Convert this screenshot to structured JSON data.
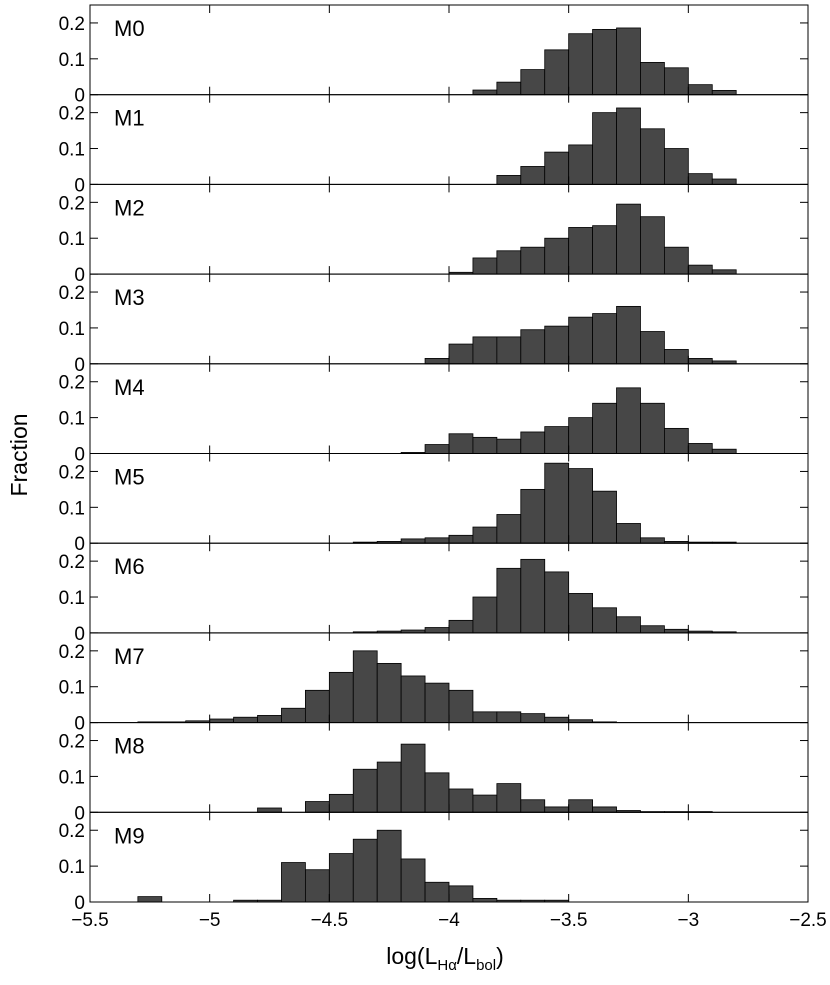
{
  "chart_data": {
    "type": "bar",
    "ylabel": "Fraction",
    "xlabel": {
      "prefix": "log(L",
      "sub1": "Hα",
      "mid": "/L",
      "sub2": "bol",
      "suffix": ")"
    },
    "xlim": [
      -5.5,
      -2.5
    ],
    "xticks": [
      -5.5,
      -5,
      -4.5,
      -4,
      -3.5,
      -3,
      -2.5
    ],
    "xtick_labels": [
      "−5.5",
      "−5",
      "−4.5",
      "−4",
      "−3.5",
      "−3",
      "−2.5"
    ],
    "ylim": [
      0,
      0.25
    ],
    "yticks": [
      0,
      0.1,
      0.2
    ],
    "ytick_labels": [
      "0",
      "0.1",
      "0.2"
    ],
    "bar_color": "#474747",
    "bin_width": 0.1,
    "bin_start": -5.3,
    "bin_count": 25,
    "panels": [
      {
        "name": "M0",
        "values": [
          0,
          0,
          0,
          0,
          0,
          0,
          0,
          0,
          0,
          0,
          0,
          0,
          0,
          0,
          0.013,
          0.035,
          0.07,
          0.125,
          0.17,
          0.182,
          0.186,
          0.09,
          0.075,
          0.028,
          0.012
        ]
      },
      {
        "name": "M1",
        "values": [
          0,
          0,
          0,
          0,
          0,
          0,
          0,
          0,
          0,
          0,
          0,
          0,
          0,
          0,
          0,
          0.025,
          0.05,
          0.09,
          0.11,
          0.2,
          0.213,
          0.155,
          0.1,
          0.03,
          0.015
        ]
      },
      {
        "name": "M2",
        "values": [
          0,
          0,
          0,
          0,
          0,
          0,
          0,
          0,
          0,
          0,
          0,
          0,
          0,
          0.005,
          0.045,
          0.065,
          0.075,
          0.1,
          0.13,
          0.135,
          0.195,
          0.16,
          0.075,
          0.025,
          0.012
        ]
      },
      {
        "name": "M3",
        "values": [
          0,
          0,
          0,
          0,
          0,
          0,
          0,
          0,
          0,
          0,
          0,
          0,
          0.015,
          0.055,
          0.075,
          0.075,
          0.095,
          0.105,
          0.13,
          0.14,
          0.16,
          0.09,
          0.04,
          0.015,
          0.008
        ]
      },
      {
        "name": "M4",
        "values": [
          0,
          0,
          0,
          0,
          0,
          0,
          0,
          0,
          0,
          0,
          0,
          0.003,
          0.025,
          0.055,
          0.045,
          0.04,
          0.06,
          0.075,
          0.1,
          0.14,
          0.183,
          0.14,
          0.07,
          0.028,
          0.012
        ]
      },
      {
        "name": "M5",
        "values": [
          0,
          0,
          0,
          0,
          0,
          0,
          0,
          0,
          0,
          0.003,
          0.005,
          0.012,
          0.015,
          0.022,
          0.045,
          0.08,
          0.15,
          0.223,
          0.208,
          0.145,
          0.055,
          0.015,
          0.005,
          0.003,
          0.003
        ]
      },
      {
        "name": "M6",
        "values": [
          0,
          0,
          0,
          0,
          0,
          0,
          0,
          0,
          0,
          0.003,
          0.005,
          0.008,
          0.015,
          0.035,
          0.1,
          0.18,
          0.205,
          0.17,
          0.11,
          0.07,
          0.045,
          0.02,
          0.01,
          0.005,
          0.003
        ]
      },
      {
        "name": "M7",
        "values": [
          0.002,
          0.002,
          0.005,
          0.01,
          0.015,
          0.02,
          0.04,
          0.09,
          0.14,
          0.2,
          0.165,
          0.13,
          0.11,
          0.09,
          0.03,
          0.03,
          0.025,
          0.015,
          0.008,
          0.002,
          0,
          0,
          0,
          0,
          0
        ]
      },
      {
        "name": "M8",
        "values": [
          0,
          0,
          0,
          0,
          0,
          0.012,
          0,
          0.03,
          0.05,
          0.12,
          0.14,
          0.19,
          0.11,
          0.065,
          0.048,
          0.08,
          0.035,
          0.015,
          0.035,
          0.015,
          0.005,
          0.002,
          0.002,
          0.002,
          0
        ]
      },
      {
        "name": "M9",
        "values": [
          0.015,
          0,
          0,
          0,
          0.005,
          0.005,
          0.11,
          0.09,
          0.135,
          0.175,
          0.2,
          0.12,
          0.055,
          0.045,
          0.01,
          0.005,
          0.005,
          0.005,
          0,
          0,
          0,
          0,
          0,
          0,
          0
        ]
      }
    ]
  }
}
